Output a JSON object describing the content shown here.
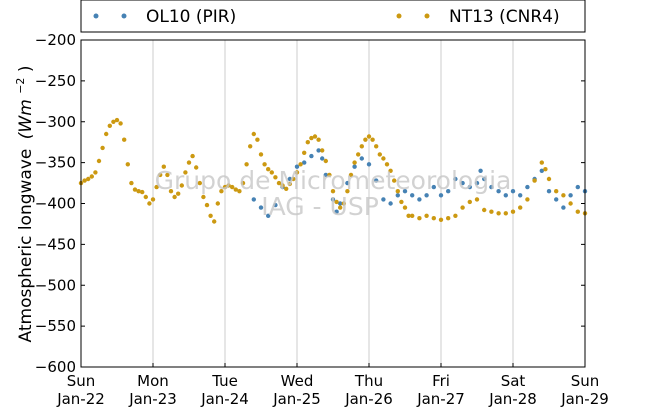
{
  "watermark": {
    "line1": "Grupo de Micrometeorologia",
    "line2": "IAG - USP"
  },
  "chart_data": {
    "type": "scatter",
    "title": "",
    "ylabel": "Atmospheric longwave",
    "yunit_base": "(Wm",
    "yunit_exp": "−2",
    "yunit_close": ")",
    "ylim": [
      -600,
      -200
    ],
    "yticks": [
      -200,
      -250,
      -300,
      -350,
      -400,
      -450,
      -500,
      -550,
      -600
    ],
    "ytick_labels": [
      "−200",
      "−250",
      "−300",
      "−350",
      "−400",
      "−450",
      "−500",
      "−550",
      "−600"
    ],
    "xlim": [
      "2017-01-22",
      "2017-01-29"
    ],
    "xticks": [
      {
        "day": "Sun",
        "date": "Jan-22"
      },
      {
        "day": "Mon",
        "date": "Jan-23"
      },
      {
        "day": "Tue",
        "date": "Jan-24"
      },
      {
        "day": "Wed",
        "date": "Jan-25"
      },
      {
        "day": "Thu",
        "date": "Jan-26"
      },
      {
        "day": "Fri",
        "date": "Jan-27"
      },
      {
        "day": "Sat",
        "date": "Jan-28"
      },
      {
        "day": "Sun",
        "date": "Jan-29"
      }
    ],
    "grid": "vertical",
    "legend_position": "top",
    "series": [
      {
        "name": "OL10 (PIR)",
        "color": "#4682b4",
        "points": [
          [
            2.4,
            -395
          ],
          [
            2.5,
            -405
          ],
          [
            2.6,
            -415
          ],
          [
            2.7,
            -402
          ],
          [
            2.8,
            -380
          ],
          [
            2.9,
            -370
          ],
          [
            3.0,
            -355
          ],
          [
            3.1,
            -350
          ],
          [
            3.2,
            -342
          ],
          [
            3.3,
            -335
          ],
          [
            3.35,
            -345
          ],
          [
            3.4,
            -365
          ],
          [
            3.5,
            -395
          ],
          [
            3.55,
            -410
          ],
          [
            3.6,
            -400
          ],
          [
            3.7,
            -375
          ],
          [
            3.8,
            -355
          ],
          [
            3.9,
            -345
          ],
          [
            4.0,
            -352
          ],
          [
            4.1,
            -372
          ],
          [
            4.2,
            -395
          ],
          [
            4.3,
            -400
          ],
          [
            4.4,
            -390
          ],
          [
            4.5,
            -385
          ],
          [
            4.6,
            -390
          ],
          [
            4.7,
            -395
          ],
          [
            4.8,
            -390
          ],
          [
            4.9,
            -380
          ],
          [
            5.0,
            -390
          ],
          [
            5.1,
            -385
          ],
          [
            5.2,
            -370
          ],
          [
            5.3,
            -375
          ],
          [
            5.4,
            -380
          ],
          [
            5.5,
            -375
          ],
          [
            5.55,
            -360
          ],
          [
            5.6,
            -370
          ],
          [
            5.7,
            -380
          ],
          [
            5.8,
            -385
          ],
          [
            5.9,
            -390
          ],
          [
            6.0,
            -385
          ],
          [
            6.1,
            -390
          ],
          [
            6.2,
            -380
          ],
          [
            6.3,
            -370
          ],
          [
            6.4,
            -360
          ],
          [
            6.5,
            -385
          ],
          [
            6.6,
            -395
          ],
          [
            6.7,
            -405
          ],
          [
            6.8,
            -390
          ],
          [
            6.9,
            -380
          ],
          [
            7.0,
            -385
          ]
        ]
      },
      {
        "name": "NT13 (CNR4)",
        "color": "#cc9911",
        "points": [
          [
            0.0,
            -375
          ],
          [
            0.05,
            -372
          ],
          [
            0.1,
            -370
          ],
          [
            0.15,
            -367
          ],
          [
            0.2,
            -362
          ],
          [
            0.25,
            -348
          ],
          [
            0.3,
            -332
          ],
          [
            0.35,
            -315
          ],
          [
            0.4,
            -305
          ],
          [
            0.45,
            -300
          ],
          [
            0.5,
            -298
          ],
          [
            0.55,
            -302
          ],
          [
            0.6,
            -322
          ],
          [
            0.65,
            -352
          ],
          [
            0.7,
            -375
          ],
          [
            0.75,
            -383
          ],
          [
            0.8,
            -385
          ],
          [
            0.85,
            -386
          ],
          [
            0.9,
            -392
          ],
          [
            0.95,
            -400
          ],
          [
            1.0,
            -395
          ],
          [
            1.05,
            -380
          ],
          [
            1.1,
            -365
          ],
          [
            1.15,
            -355
          ],
          [
            1.2,
            -365
          ],
          [
            1.25,
            -385
          ],
          [
            1.3,
            -392
          ],
          [
            1.35,
            -388
          ],
          [
            1.4,
            -378
          ],
          [
            1.45,
            -362
          ],
          [
            1.5,
            -350
          ],
          [
            1.55,
            -342
          ],
          [
            1.6,
            -356
          ],
          [
            1.65,
            -375
          ],
          [
            1.7,
            -392
          ],
          [
            1.75,
            -402
          ],
          [
            1.8,
            -415
          ],
          [
            1.85,
            -422
          ],
          [
            1.9,
            -400
          ],
          [
            1.95,
            -385
          ],
          [
            2.0,
            -380
          ],
          [
            2.05,
            -378
          ],
          [
            2.1,
            -380
          ],
          [
            2.15,
            -383
          ],
          [
            2.2,
            -385
          ],
          [
            2.25,
            -375
          ],
          [
            2.3,
            -352
          ],
          [
            2.35,
            -330
          ],
          [
            2.4,
            -315
          ],
          [
            2.45,
            -322
          ],
          [
            2.5,
            -340
          ],
          [
            2.55,
            -352
          ],
          [
            2.6,
            -358
          ],
          [
            2.65,
            -362
          ],
          [
            2.7,
            -368
          ],
          [
            2.75,
            -375
          ],
          [
            2.8,
            -378
          ],
          [
            2.85,
            -382
          ],
          [
            2.9,
            -376
          ],
          [
            2.95,
            -370
          ],
          [
            3.0,
            -362
          ],
          [
            3.05,
            -352
          ],
          [
            3.1,
            -338
          ],
          [
            3.15,
            -325
          ],
          [
            3.2,
            -320
          ],
          [
            3.25,
            -318
          ],
          [
            3.3,
            -322
          ],
          [
            3.35,
            -335
          ],
          [
            3.4,
            -348
          ],
          [
            3.45,
            -365
          ],
          [
            3.5,
            -385
          ],
          [
            3.55,
            -398
          ],
          [
            3.6,
            -405
          ],
          [
            3.65,
            -400
          ],
          [
            3.7,
            -385
          ],
          [
            3.75,
            -365
          ],
          [
            3.8,
            -350
          ],
          [
            3.85,
            -340
          ],
          [
            3.9,
            -330
          ],
          [
            3.95,
            -322
          ],
          [
            4.0,
            -318
          ],
          [
            4.05,
            -322
          ],
          [
            4.1,
            -330
          ],
          [
            4.15,
            -340
          ],
          [
            4.2,
            -345
          ],
          [
            4.25,
            -352
          ],
          [
            4.3,
            -360
          ],
          [
            4.35,
            -372
          ],
          [
            4.4,
            -385
          ],
          [
            4.45,
            -398
          ],
          [
            4.5,
            -405
          ],
          [
            4.55,
            -415
          ],
          [
            4.6,
            -415
          ],
          [
            4.7,
            -418
          ],
          [
            4.8,
            -415
          ],
          [
            4.9,
            -418
          ],
          [
            5.0,
            -420
          ],
          [
            5.1,
            -418
          ],
          [
            5.2,
            -415
          ],
          [
            5.3,
            -405
          ],
          [
            5.4,
            -398
          ],
          [
            5.5,
            -395
          ],
          [
            5.6,
            -408
          ],
          [
            5.7,
            -410
          ],
          [
            5.8,
            -412
          ],
          [
            5.9,
            -412
          ],
          [
            6.0,
            -410
          ],
          [
            6.1,
            -405
          ],
          [
            6.2,
            -395
          ],
          [
            6.3,
            -372
          ],
          [
            6.4,
            -350
          ],
          [
            6.45,
            -358
          ],
          [
            6.5,
            -370
          ],
          [
            6.6,
            -385
          ],
          [
            6.7,
            -390
          ],
          [
            6.8,
            -400
          ],
          [
            6.9,
            -410
          ],
          [
            7.0,
            -412
          ]
        ]
      }
    ]
  }
}
